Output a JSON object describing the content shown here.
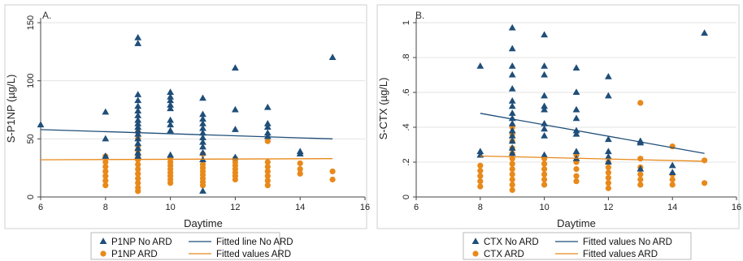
{
  "colors": {
    "noard": "#1f4e79",
    "ard": "#e8891a",
    "grid": "#e3e3e3"
  },
  "chart_data": [
    {
      "type": "scatter",
      "panel_label": "A.",
      "xlabel": "Daytime",
      "ylabel": "S-P1NP (µg/L)",
      "xlim": [
        6,
        16
      ],
      "ylim": [
        0,
        150
      ],
      "xticks": [
        6,
        8,
        10,
        12,
        14,
        16
      ],
      "yticks": [
        0,
        50,
        100,
        150
      ],
      "ytick_labels": [
        "0",
        "50",
        "100",
        "150"
      ],
      "grid": true,
      "legend_position": "bottom",
      "series": [
        {
          "name": "P1NP No ARD",
          "marker": "triangle",
          "color_key": "noard",
          "points": [
            [
              6,
              62
            ],
            [
              8,
              73
            ],
            [
              8,
              50
            ],
            [
              8,
              35
            ],
            [
              9,
              137
            ],
            [
              9,
              132
            ],
            [
              9,
              88
            ],
            [
              9,
              83
            ],
            [
              9,
              78
            ],
            [
              9,
              74
            ],
            [
              9,
              70
            ],
            [
              9,
              66
            ],
            [
              9,
              63
            ],
            [
              9,
              60
            ],
            [
              9,
              57
            ],
            [
              9,
              54
            ],
            [
              9,
              50
            ],
            [
              9,
              46
            ],
            [
              9,
              42
            ],
            [
              9,
              38
            ],
            [
              9,
              35
            ],
            [
              10,
              90
            ],
            [
              10,
              86
            ],
            [
              10,
              83
            ],
            [
              10,
              79
            ],
            [
              10,
              76
            ],
            [
              10,
              66
            ],
            [
              10,
              62
            ],
            [
              10,
              57
            ],
            [
              10,
              36
            ],
            [
              11,
              85
            ],
            [
              11,
              71
            ],
            [
              11,
              67
            ],
            [
              11,
              63
            ],
            [
              11,
              59
            ],
            [
              11,
              55
            ],
            [
              11,
              51
            ],
            [
              11,
              47
            ],
            [
              11,
              43
            ],
            [
              11,
              38
            ],
            [
              11,
              32
            ],
            [
              11,
              5
            ],
            [
              12,
              111
            ],
            [
              12,
              75
            ],
            [
              12,
              58
            ],
            [
              12,
              34
            ],
            [
              13,
              77
            ],
            [
              13,
              63
            ],
            [
              13,
              60
            ],
            [
              13,
              55
            ],
            [
              13,
              52
            ],
            [
              14,
              39
            ],
            [
              14,
              37
            ],
            [
              15,
              120
            ]
          ]
        },
        {
          "name": "P1NP ARD",
          "marker": "circle",
          "color_key": "ard",
          "points": [
            [
              8,
              35
            ],
            [
              8,
              30
            ],
            [
              8,
              26
            ],
            [
              8,
              22
            ],
            [
              8,
              18
            ],
            [
              8,
              14
            ],
            [
              8,
              10
            ],
            [
              9,
              56
            ],
            [
              9,
              50
            ],
            [
              9,
              44
            ],
            [
              9,
              40
            ],
            [
              9,
              36
            ],
            [
              9,
              32
            ],
            [
              9,
              28
            ],
            [
              9,
              24
            ],
            [
              9,
              20
            ],
            [
              9,
              16
            ],
            [
              9,
              12
            ],
            [
              9,
              8
            ],
            [
              9,
              5
            ],
            [
              10,
              33
            ],
            [
              10,
              30
            ],
            [
              10,
              27
            ],
            [
              10,
              24
            ],
            [
              10,
              21
            ],
            [
              10,
              18
            ],
            [
              10,
              15
            ],
            [
              10,
              12
            ],
            [
              11,
              37
            ],
            [
              11,
              28
            ],
            [
              11,
              25
            ],
            [
              11,
              22
            ],
            [
              11,
              19
            ],
            [
              11,
              16
            ],
            [
              11,
              13
            ],
            [
              11,
              10
            ],
            [
              12,
              33
            ],
            [
              12,
              30
            ],
            [
              12,
              27
            ],
            [
              12,
              24
            ],
            [
              12,
              21
            ],
            [
              12,
              18
            ],
            [
              12,
              15
            ],
            [
              13,
              48
            ],
            [
              13,
              30
            ],
            [
              13,
              26
            ],
            [
              13,
              22
            ],
            [
              13,
              18
            ],
            [
              13,
              14
            ],
            [
              13,
              10
            ],
            [
              14,
              29
            ],
            [
              14,
              24
            ],
            [
              14,
              20
            ],
            [
              15,
              22
            ],
            [
              15,
              15
            ]
          ]
        }
      ],
      "fit_lines": [
        {
          "name": "Fitted line No ARD",
          "color_key": "noard",
          "x": [
            6,
            15
          ],
          "y": [
            58,
            50
          ]
        },
        {
          "name": "Fitted values ARD",
          "color_key": "ard",
          "x": [
            6,
            15
          ],
          "y": [
            32,
            33
          ]
        }
      ]
    },
    {
      "type": "scatter",
      "panel_label": "B.",
      "xlabel": "Daytime",
      "ylabel": "S-CTX (µg/L)",
      "xlim": [
        6,
        16
      ],
      "ylim": [
        0,
        1
      ],
      "xticks": [
        6,
        8,
        10,
        12,
        14,
        16
      ],
      "yticks": [
        0,
        0.2,
        0.4,
        0.6,
        0.8,
        1
      ],
      "ytick_labels": [
        "0",
        ".2",
        ".4",
        ".6",
        ".8",
        "1"
      ],
      "grid": true,
      "legend_position": "bottom",
      "series": [
        {
          "name": "CTX No ARD",
          "marker": "triangle",
          "color_key": "noard",
          "points": [
            [
              8,
              0.75
            ],
            [
              8,
              0.26
            ],
            [
              8,
              0.24
            ],
            [
              9,
              0.97
            ],
            [
              9,
              0.85
            ],
            [
              9,
              0.75
            ],
            [
              9,
              0.7
            ],
            [
              9,
              0.62
            ],
            [
              9,
              0.55
            ],
            [
              9,
              0.52
            ],
            [
              9,
              0.48
            ],
            [
              9,
              0.45
            ],
            [
              9,
              0.42
            ],
            [
              9,
              0.38
            ],
            [
              9,
              0.35
            ],
            [
              9,
              0.32
            ],
            [
              9,
              0.28
            ],
            [
              9,
              0.25
            ],
            [
              10,
              0.93
            ],
            [
              10,
              0.75
            ],
            [
              10,
              0.7
            ],
            [
              10,
              0.58
            ],
            [
              10,
              0.52
            ],
            [
              10,
              0.5
            ],
            [
              10,
              0.42
            ],
            [
              10,
              0.39
            ],
            [
              10,
              0.35
            ],
            [
              10,
              0.24
            ],
            [
              11,
              0.74
            ],
            [
              11,
              0.6
            ],
            [
              11,
              0.5
            ],
            [
              11,
              0.45
            ],
            [
              11,
              0.38
            ],
            [
              11,
              0.36
            ],
            [
              11,
              0.26
            ],
            [
              11,
              0.22
            ],
            [
              12,
              0.69
            ],
            [
              12,
              0.58
            ],
            [
              12,
              0.33
            ],
            [
              12,
              0.26
            ],
            [
              12,
              0.23
            ],
            [
              12,
              0.2
            ],
            [
              13,
              0.32
            ],
            [
              13,
              0.31
            ],
            [
              13,
              0.16
            ],
            [
              14,
              0.18
            ],
            [
              14,
              0.14
            ],
            [
              15,
              0.94
            ]
          ]
        },
        {
          "name": "CTX ARD",
          "marker": "circle",
          "color_key": "ard",
          "points": [
            [
              8,
              0.18
            ],
            [
              8,
              0.15
            ],
            [
              8,
              0.12
            ],
            [
              8,
              0.09
            ],
            [
              8,
              0.06
            ],
            [
              9,
              0.4
            ],
            [
              9,
              0.36
            ],
            [
              9,
              0.32
            ],
            [
              9,
              0.28
            ],
            [
              9,
              0.25
            ],
            [
              9,
              0.22
            ],
            [
              9,
              0.19
            ],
            [
              9,
              0.16
            ],
            [
              9,
              0.13
            ],
            [
              9,
              0.1
            ],
            [
              9,
              0.07
            ],
            [
              9,
              0.04
            ],
            [
              10,
              0.22
            ],
            [
              10,
              0.19
            ],
            [
              10,
              0.16
            ],
            [
              10,
              0.13
            ],
            [
              10,
              0.1
            ],
            [
              10,
              0.07
            ],
            [
              11,
              0.24
            ],
            [
              11,
              0.2
            ],
            [
              11,
              0.16
            ],
            [
              11,
              0.12
            ],
            [
              11,
              0.09
            ],
            [
              12,
              0.2
            ],
            [
              12,
              0.17
            ],
            [
              12,
              0.14
            ],
            [
              12,
              0.11
            ],
            [
              12,
              0.08
            ],
            [
              12,
              0.05
            ],
            [
              13,
              0.54
            ],
            [
              13,
              0.22
            ],
            [
              13,
              0.17
            ],
            [
              13,
              0.13
            ],
            [
              13,
              0.1
            ],
            [
              13,
              0.07
            ],
            [
              14,
              0.29
            ],
            [
              14,
              0.13
            ],
            [
              14,
              0.1
            ],
            [
              14,
              0.07
            ],
            [
              15,
              0.21
            ],
            [
              15,
              0.08
            ]
          ]
        }
      ],
      "fit_lines": [
        {
          "name": "Fitted values No ARD",
          "color_key": "noard",
          "x": [
            8,
            15
          ],
          "y": [
            0.48,
            0.25
          ]
        },
        {
          "name": "Fitted values ARD",
          "color_key": "ard",
          "x": [
            8,
            15
          ],
          "y": [
            0.235,
            0.205
          ]
        }
      ]
    }
  ]
}
